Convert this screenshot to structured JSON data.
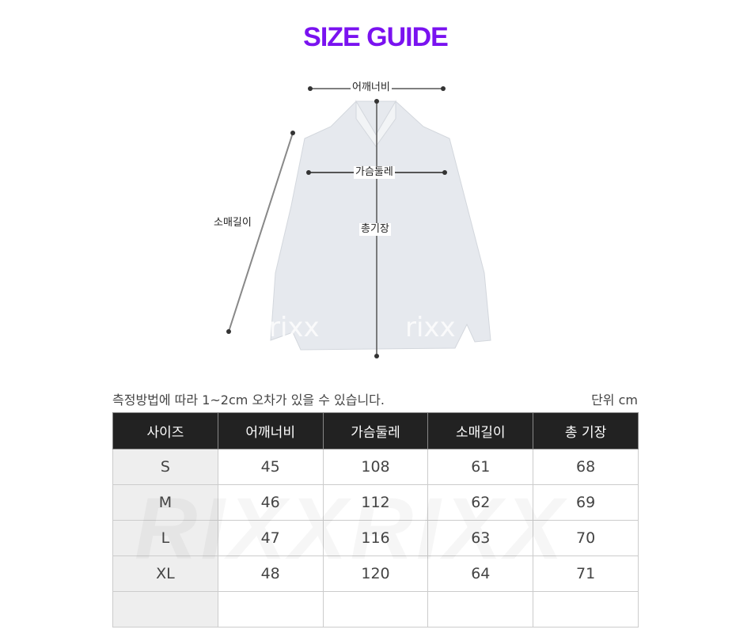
{
  "title": "SIZE GUIDE",
  "diagram": {
    "shoulder": "어깨너비",
    "chest": "가슴둘레",
    "sleeve": "소매길이",
    "length": "총기장",
    "watermark": "rixx"
  },
  "note": "측정방법에 따라 1~2cm 오차가 있을 수 있습니다.",
  "unit": "단위 cm",
  "table": {
    "headers": [
      "사이즈",
      "어깨너비",
      "가슴둘레",
      "소매길이",
      "총 기장"
    ],
    "rows": [
      [
        "S",
        "45",
        "108",
        "61",
        "68"
      ],
      [
        "M",
        "46",
        "112",
        "62",
        "69"
      ],
      [
        "L",
        "47",
        "116",
        "63",
        "70"
      ],
      [
        "XL",
        "48",
        "120",
        "64",
        "71"
      ],
      [
        "",
        "",
        "",
        "",
        ""
      ]
    ]
  },
  "table_watermark": "RIXXRIXX",
  "colors": {
    "title": "#7a12f0",
    "header_bg": "#222222"
  }
}
